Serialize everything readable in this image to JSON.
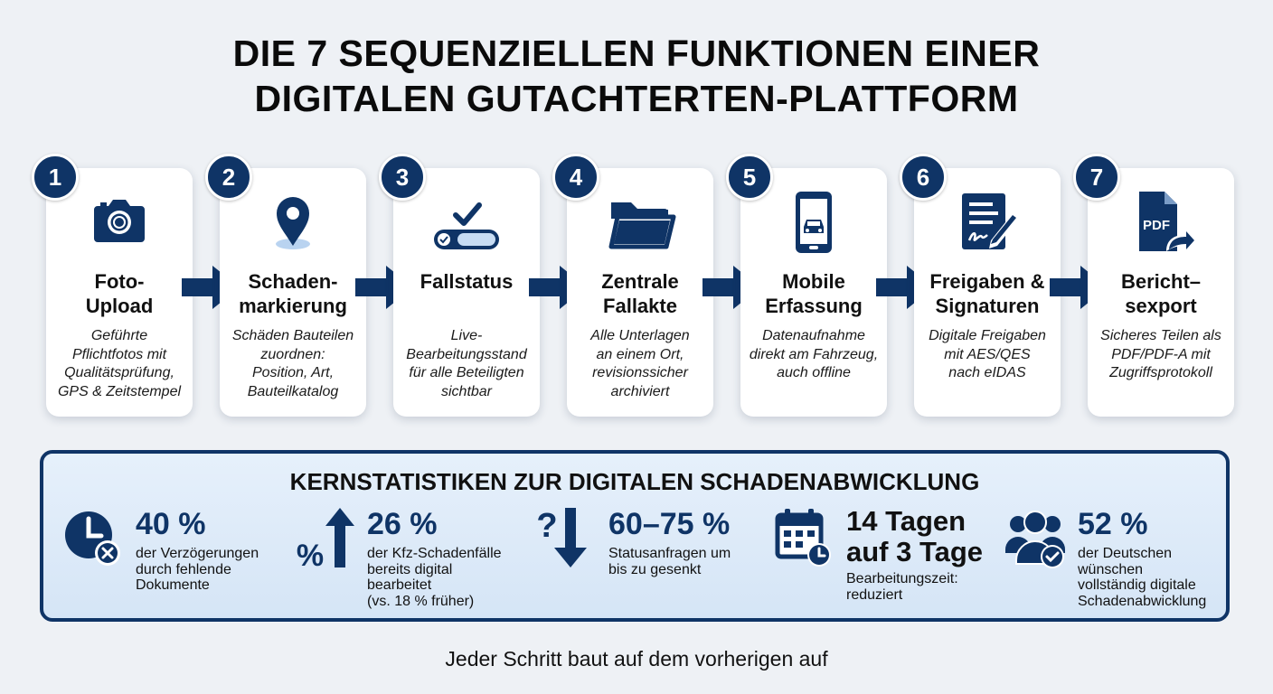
{
  "title": {
    "line1": "DIE 7 SEQUENZIELLEN FUNKTIONEN EINER",
    "line2": "DIGITALEN GUTACHTERTEN-PLATTFORM"
  },
  "steps": [
    {
      "number": "1",
      "icon": "camera-icon",
      "title": [
        "Foto-",
        "Upload"
      ],
      "desc": [
        "Geführte",
        "Pflichtfotos mit",
        "Qualitätsprüfung,",
        "GPS & Zeitstempel"
      ]
    },
    {
      "number": "2",
      "icon": "location-pin-icon",
      "title": [
        "Schaden-",
        "markierung"
      ],
      "desc": [
        "Schäden Bauteilen",
        "zuordnen:",
        "Position, Art,",
        "Bauteilkatalog"
      ]
    },
    {
      "number": "3",
      "icon": "status-toggle-icon",
      "title": [
        "Fallstatus"
      ],
      "desc": [
        "Live-",
        "Bearbeitungsstand",
        "für alle Beteiligten",
        "sichtbar"
      ]
    },
    {
      "number": "4",
      "icon": "folder-icon",
      "title": [
        "Zentrale",
        "Fallakte"
      ],
      "desc": [
        "Alle Unterlagen",
        "an einem Ort,",
        "revisionssicher",
        "archiviert"
      ]
    },
    {
      "number": "5",
      "icon": "smartphone-car-icon",
      "title": [
        "Mobile",
        "Erfassung"
      ],
      "desc": [
        "Datenaufnahme",
        "direkt am Fahrzeug,",
        "auch offline"
      ]
    },
    {
      "number": "6",
      "icon": "signature-document-icon",
      "title": [
        "Freigaben &",
        "Signaturen"
      ],
      "desc": [
        "Digitale Freigaben",
        "mit AES/QES",
        "nach eIDAS"
      ]
    },
    {
      "number": "7",
      "icon": "pdf-export-icon",
      "title": [
        "Bericht–",
        "sexport"
      ],
      "desc": [
        "Sicheres Teilen als",
        "PDF/PDF-A mit",
        "Zugriffsprotokoll"
      ]
    }
  ],
  "stats": {
    "title": "KERNSTATISTIKEN ZUR DIGITALEN SCHADENABWICKLUNG",
    "items": [
      {
        "icon": "clock-x-icon",
        "value": [
          "40 %"
        ],
        "desc": [
          "der Verzögerungen",
          "durch fehlende",
          "Dokumente"
        ]
      },
      {
        "icon": "percent-arrow-up-icon",
        "value": [
          "26 %"
        ],
        "desc": [
          "der Kfz-Schadenfälle",
          "bereits digital",
          "bearbeitet",
          "(vs. 18 % früher)"
        ]
      },
      {
        "icon": "question-arrow-down-icon",
        "value": [
          "60–75 %"
        ],
        "desc": [
          "Statusanfragen um",
          "bis zu gesenkt"
        ]
      },
      {
        "icon": "calendar-clock-icon",
        "value": [
          "14 Tagen",
          "auf 3 Tage"
        ],
        "desc": [
          "Bearbeitungszeit:",
          "reduziert"
        ]
      },
      {
        "icon": "users-check-icon",
        "value": [
          "52 %"
        ],
        "desc": [
          "der Deutschen",
          "wünschen",
          "vollständig digitale",
          "Schadenabwicklung"
        ]
      }
    ]
  },
  "footer": "Jeder Schritt baut auf dem vorherigen auf",
  "colors": {
    "navy": "#0f3466",
    "background": "#eef1f5",
    "panel": "#dce9f7"
  }
}
